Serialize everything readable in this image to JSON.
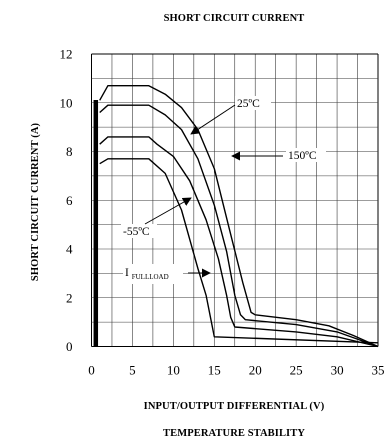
{
  "chart_data": {
    "type": "line",
    "title": "SHORT CIRCUIT CURRENT",
    "xlabel": "INPUT/OUTPUT DIFFERENTIAL (V)",
    "ylabel": "SHORT CIRCUIT CURRENT (A)",
    "caption": "TEMPERATURE STABILITY",
    "xlim": [
      0,
      35
    ],
    "ylim": [
      0,
      12
    ],
    "x_ticks": [
      "0",
      "5",
      "10",
      "15",
      "20",
      "25",
      "30",
      "35"
    ],
    "y_ticks": [
      "0",
      "2",
      "4",
      "6",
      "8",
      "10",
      "12"
    ],
    "grid": true,
    "series": [
      {
        "name": "25ºC",
        "x": [
          1,
          2,
          7,
          9,
          11,
          13,
          15,
          17,
          18.5,
          19.5,
          20,
          25,
          29,
          32,
          35
        ],
        "y": [
          10.1,
          10.7,
          10.7,
          10.35,
          9.8,
          8.9,
          7.3,
          4.6,
          2.6,
          1.4,
          1.3,
          1.1,
          0.85,
          0.45,
          0
        ]
      },
      {
        "name": "150ºC",
        "x": [
          1,
          2,
          7,
          9,
          11,
          13,
          15,
          16.5,
          17.5,
          18.2,
          18.8,
          25,
          30,
          35
        ],
        "y": [
          9.6,
          9.9,
          9.9,
          9.5,
          8.9,
          7.7,
          5.8,
          3.9,
          2.1,
          1.3,
          1.1,
          0.9,
          0.6,
          0
        ]
      },
      {
        "name": "-55ºC",
        "x": [
          1,
          2,
          7,
          8,
          10,
          12,
          14,
          15.5,
          16.5,
          17,
          17.5,
          25,
          30,
          35
        ],
        "y": [
          8.3,
          8.6,
          8.6,
          8.3,
          7.8,
          6.8,
          5.2,
          3.6,
          2.1,
          1.2,
          0.8,
          0.6,
          0.4,
          0
        ]
      },
      {
        "name": "IFULLLOAD",
        "x": [
          1,
          2,
          7,
          9,
          11,
          13,
          14,
          15,
          35
        ],
        "y": [
          7.5,
          7.7,
          7.7,
          7.1,
          5.6,
          3.2,
          2.1,
          0.4,
          0.15
        ]
      }
    ],
    "annotations": [
      {
        "text": "25ºC",
        "points_to": "25ºC"
      },
      {
        "text": "150ºC",
        "points_to": "150ºC"
      },
      {
        "text": "-55ºC",
        "points_to": "-55ºC"
      },
      {
        "text": "I",
        "subscript": "FULLLOAD",
        "points_to": "IFULLLOAD"
      }
    ]
  }
}
